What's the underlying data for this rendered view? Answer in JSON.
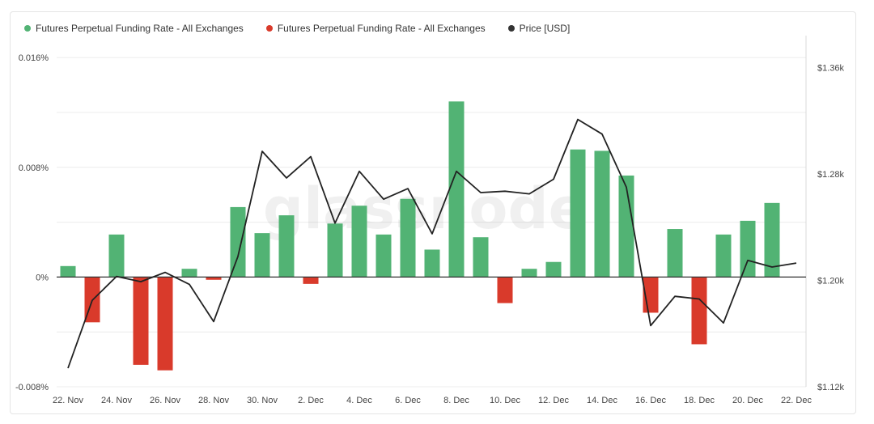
{
  "colors": {
    "positive": "#52b374",
    "negative": "#d93a2b",
    "price": "#222222",
    "grid": "#ececec"
  },
  "watermark": "glassnode",
  "chart_data": {
    "type": "bar",
    "legend": [
      {
        "label": "Futures Perpetual Funding Rate - All Exchanges",
        "color": "#52b374"
      },
      {
        "label": "Futures Perpetual Funding Rate - All Exchanges",
        "color": "#d93a2b"
      },
      {
        "label": "Price [USD]",
        "color": "#333333"
      }
    ],
    "x_ticks": [
      "22. Nov",
      "24. Nov",
      "26. Nov",
      "28. Nov",
      "30. Nov",
      "2. Dec",
      "4. Dec",
      "6. Dec",
      "8. Dec",
      "10. Dec",
      "12. Dec",
      "14. Dec",
      "16. Dec",
      "18. Dec",
      "20. Dec",
      "22. Dec"
    ],
    "y_left": {
      "ticks": [
        "-0.008%",
        "0%",
        "0.008%",
        "0.016%"
      ],
      "values": [
        -0.008,
        0,
        0.008,
        0.016
      ],
      "range": [
        -0.008,
        0.0176
      ]
    },
    "y_right": {
      "ticks": [
        "$1.12k",
        "$1.20k",
        "$1.28k",
        "$1.36k"
      ],
      "values": [
        1120,
        1200,
        1280,
        1360
      ],
      "range": [
        1120,
        1384
      ]
    },
    "funding_rate": [
      {
        "date": "22. Nov",
        "value": 0.0008
      },
      {
        "date": "23. Nov",
        "value": -0.0033
      },
      {
        "date": "24. Nov",
        "value": 0.0031
      },
      {
        "date": "25. Nov",
        "value": -0.0064
      },
      {
        "date": "26. Nov",
        "value": -0.0068
      },
      {
        "date": "27. Nov",
        "value": 0.0006
      },
      {
        "date": "28. Nov",
        "value": -0.0002
      },
      {
        "date": "29. Nov",
        "value": 0.0051
      },
      {
        "date": "30. Nov",
        "value": 0.0032
      },
      {
        "date": "1. Dec",
        "value": 0.0045
      },
      {
        "date": "2. Dec",
        "value": -0.0005
      },
      {
        "date": "3. Dec",
        "value": 0.0039
      },
      {
        "date": "4. Dec",
        "value": 0.0052
      },
      {
        "date": "5. Dec",
        "value": 0.0031
      },
      {
        "date": "6. Dec",
        "value": 0.0057
      },
      {
        "date": "7. Dec",
        "value": 0.002
      },
      {
        "date": "8. Dec",
        "value": 0.0128
      },
      {
        "date": "9. Dec",
        "value": 0.0029
      },
      {
        "date": "10. Dec",
        "value": -0.0019
      },
      {
        "date": "11. Dec",
        "value": 0.0006
      },
      {
        "date": "12. Dec",
        "value": 0.0011
      },
      {
        "date": "13. Dec",
        "value": 0.0093
      },
      {
        "date": "14. Dec",
        "value": 0.0092
      },
      {
        "date": "15. Dec",
        "value": 0.0074
      },
      {
        "date": "16. Dec",
        "value": -0.0026
      },
      {
        "date": "17. Dec",
        "value": 0.0035
      },
      {
        "date": "18. Dec",
        "value": -0.0049
      },
      {
        "date": "19. Dec",
        "value": 0.0031
      },
      {
        "date": "20. Dec",
        "value": 0.0041
      },
      {
        "date": "21. Dec",
        "value": 0.0054
      }
    ],
    "price": [
      {
        "date": "22. Nov",
        "value": 1134
      },
      {
        "date": "23. Nov",
        "value": 1185
      },
      {
        "date": "24. Nov",
        "value": 1203
      },
      {
        "date": "25. Nov",
        "value": 1199
      },
      {
        "date": "26. Nov",
        "value": 1206
      },
      {
        "date": "27. Nov",
        "value": 1197
      },
      {
        "date": "28. Nov",
        "value": 1169
      },
      {
        "date": "29. Nov",
        "value": 1218
      },
      {
        "date": "30. Nov",
        "value": 1297
      },
      {
        "date": "1. Dec",
        "value": 1277
      },
      {
        "date": "2. Dec",
        "value": 1293
      },
      {
        "date": "3. Dec",
        "value": 1243
      },
      {
        "date": "4. Dec",
        "value": 1282
      },
      {
        "date": "5. Dec",
        "value": 1261
      },
      {
        "date": "6. Dec",
        "value": 1269
      },
      {
        "date": "7. Dec",
        "value": 1235
      },
      {
        "date": "8. Dec",
        "value": 1282
      },
      {
        "date": "9. Dec",
        "value": 1266
      },
      {
        "date": "10. Dec",
        "value": 1267
      },
      {
        "date": "11. Dec",
        "value": 1265
      },
      {
        "date": "12. Dec",
        "value": 1276
      },
      {
        "date": "13. Dec",
        "value": 1321
      },
      {
        "date": "14. Dec",
        "value": 1310
      },
      {
        "date": "15. Dec",
        "value": 1270
      },
      {
        "date": "16. Dec",
        "value": 1166
      },
      {
        "date": "17. Dec",
        "value": 1188
      },
      {
        "date": "18. Dec",
        "value": 1186
      },
      {
        "date": "19. Dec",
        "value": 1168
      },
      {
        "date": "20. Dec",
        "value": 1215
      },
      {
        "date": "21. Dec",
        "value": 1210
      },
      {
        "date": "22. Dec",
        "value": 1213
      }
    ]
  }
}
